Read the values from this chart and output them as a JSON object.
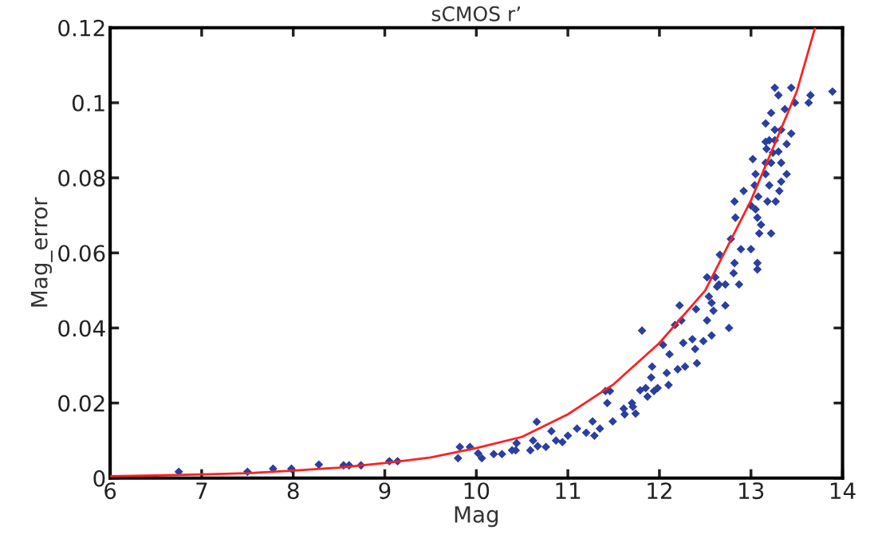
{
  "chart_data": {
    "type": "scatter",
    "title": "sCMOS r’",
    "xlabel": "Mag",
    "ylabel": "Mag_error",
    "xlim": [
      6,
      14
    ],
    "xticks": [
      6,
      7,
      8,
      9,
      10,
      11,
      12,
      13,
      14
    ],
    "ylim": [
      0,
      0.12
    ],
    "yticks": [
      0,
      0.02,
      0.04,
      0.06,
      0.08,
      0.1,
      0.12
    ],
    "grid": false,
    "legend": false,
    "marker": "diamond",
    "series": [
      {
        "color": "#2a3fa0",
        "x": [
          6.75,
          7.5,
          7.78,
          7.98,
          8.28,
          8.55,
          8.61,
          8.74,
          9.05,
          9.14,
          9.8,
          9.82,
          9.93,
          10.02,
          10.06,
          10.19,
          10.28,
          10.39,
          10.43,
          10.44,
          10.59,
          10.62,
          10.66,
          10.67,
          10.76,
          10.82,
          10.87,
          10.94,
          11.0,
          11.1,
          11.2,
          11.27,
          11.29,
          11.35,
          11.41,
          11.46,
          11.43,
          11.49,
          11.62,
          11.71,
          11.74,
          11.87,
          11.94,
          11.61,
          11.7,
          11.79,
          11.85,
          11.98,
          12.1,
          11.91,
          12.08,
          11.92,
          11.81,
          12.04,
          12.11,
          12.2,
          12.28,
          12.41,
          12.39,
          12.26,
          12.36,
          12.17,
          12.24,
          12.22,
          12.4,
          12.48,
          12.57,
          12.52,
          12.76,
          12.54,
          12.72,
          12.59,
          12.65,
          12.52,
          12.61,
          12.66,
          12.63,
          12.72,
          12.81,
          12.87,
          12.57,
          12.78,
          12.89,
          13.0,
          12.82,
          13.07,
          13.07,
          13.22,
          13.09,
          13.11,
          13.07,
          12.83,
          12.82,
          13.0,
          13.05,
          13.08,
          13.18,
          13.27,
          12.92,
          13.04,
          13.2,
          13.31,
          13.33,
          13.05,
          13.16,
          13.39,
          13.22,
          13.16,
          13.02,
          13.33,
          13.17,
          13.24,
          13.3,
          13.26,
          13.2,
          13.16,
          13.39,
          13.26,
          13.33,
          13.44,
          13.16,
          13.22,
          13.37,
          13.48,
          13.63,
          13.65,
          13.26,
          13.3,
          13.44,
          13.89
        ],
        "values": [
          0.0017,
          0.0017,
          0.0025,
          0.0025,
          0.0036,
          0.0034,
          0.0034,
          0.0034,
          0.0045,
          0.0045,
          0.0053,
          0.0083,
          0.0083,
          0.0066,
          0.0053,
          0.0064,
          0.0064,
          0.0074,
          0.0074,
          0.0093,
          0.0074,
          0.01,
          0.015,
          0.0085,
          0.0083,
          0.0125,
          0.01,
          0.0096,
          0.0113,
          0.0132,
          0.0121,
          0.0151,
          0.0113,
          0.0132,
          0.0232,
          0.0232,
          0.02,
          0.0151,
          0.017,
          0.019,
          0.0172,
          0.0217,
          0.0232,
          0.0185,
          0.02,
          0.0234,
          0.024,
          0.024,
          0.0248,
          0.0268,
          0.028,
          0.0297,
          0.0393,
          0.0355,
          0.033,
          0.029,
          0.0297,
          0.0306,
          0.0344,
          0.036,
          0.037,
          0.0408,
          0.042,
          0.046,
          0.045,
          0.0365,
          0.038,
          0.042,
          0.04,
          0.0484,
          0.046,
          0.0446,
          0.0516,
          0.0535,
          0.0535,
          0.0595,
          0.051,
          0.0516,
          0.0546,
          0.0516,
          0.0467,
          0.0637,
          0.061,
          0.061,
          0.0573,
          0.0573,
          0.0556,
          0.0652,
          0.0652,
          0.0675,
          0.0694,
          0.0694,
          0.0737,
          0.0726,
          0.0716,
          0.075,
          0.0737,
          0.0737,
          0.0765,
          0.078,
          0.078,
          0.0765,
          0.079,
          0.081,
          0.081,
          0.081,
          0.084,
          0.084,
          0.085,
          0.084,
          0.0877,
          0.0867,
          0.087,
          0.09,
          0.09,
          0.0896,
          0.089,
          0.0928,
          0.0928,
          0.0918,
          0.0945,
          0.0973,
          0.0983,
          0.1,
          0.1,
          0.102,
          0.104,
          0.102,
          0.104,
          0.103
        ]
      },
      {
        "type": "line",
        "color": "#ff2020",
        "marker": "none",
        "line_style": "solid",
        "x": [
          6,
          6.5,
          7,
          7.5,
          8,
          8.5,
          9,
          9.5,
          10,
          10.5,
          11,
          11.5,
          12,
          12.5,
          13,
          13.5,
          13.7
        ],
        "values": [
          0.0005,
          0.0007,
          0.001,
          0.0013,
          0.002,
          0.0028,
          0.004,
          0.0055,
          0.008,
          0.011,
          0.017,
          0.025,
          0.036,
          0.05,
          0.074,
          0.103,
          0.12
        ]
      }
    ]
  }
}
